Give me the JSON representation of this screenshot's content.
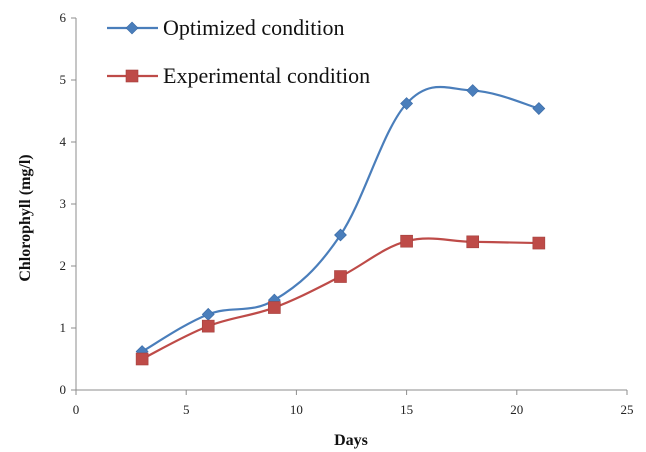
{
  "chart_data": {
    "type": "line",
    "title": "",
    "xlabel": "Days",
    "ylabel": "Chlorophyll (mg/l)",
    "xlim": [
      0,
      25
    ],
    "ylim": [
      0,
      6
    ],
    "xticks": [
      0,
      5,
      10,
      15,
      20,
      25
    ],
    "yticks": [
      0,
      1,
      2,
      3,
      4,
      5,
      6
    ],
    "grid": false,
    "smooth": true,
    "legend_position": "top-left",
    "series": [
      {
        "name": "Optimized condition",
        "color": "#4a7ebb",
        "marker": "diamond",
        "x": [
          3,
          6,
          9,
          12,
          15,
          18,
          21
        ],
        "y": [
          0.62,
          1.22,
          1.45,
          2.5,
          4.62,
          4.83,
          4.54
        ]
      },
      {
        "name": "Experimental condition",
        "color": "#be4b48",
        "marker": "square",
        "x": [
          3,
          6,
          9,
          12,
          15,
          18,
          21
        ],
        "y": [
          0.5,
          1.03,
          1.33,
          1.83,
          2.4,
          2.39,
          2.37
        ]
      }
    ]
  }
}
